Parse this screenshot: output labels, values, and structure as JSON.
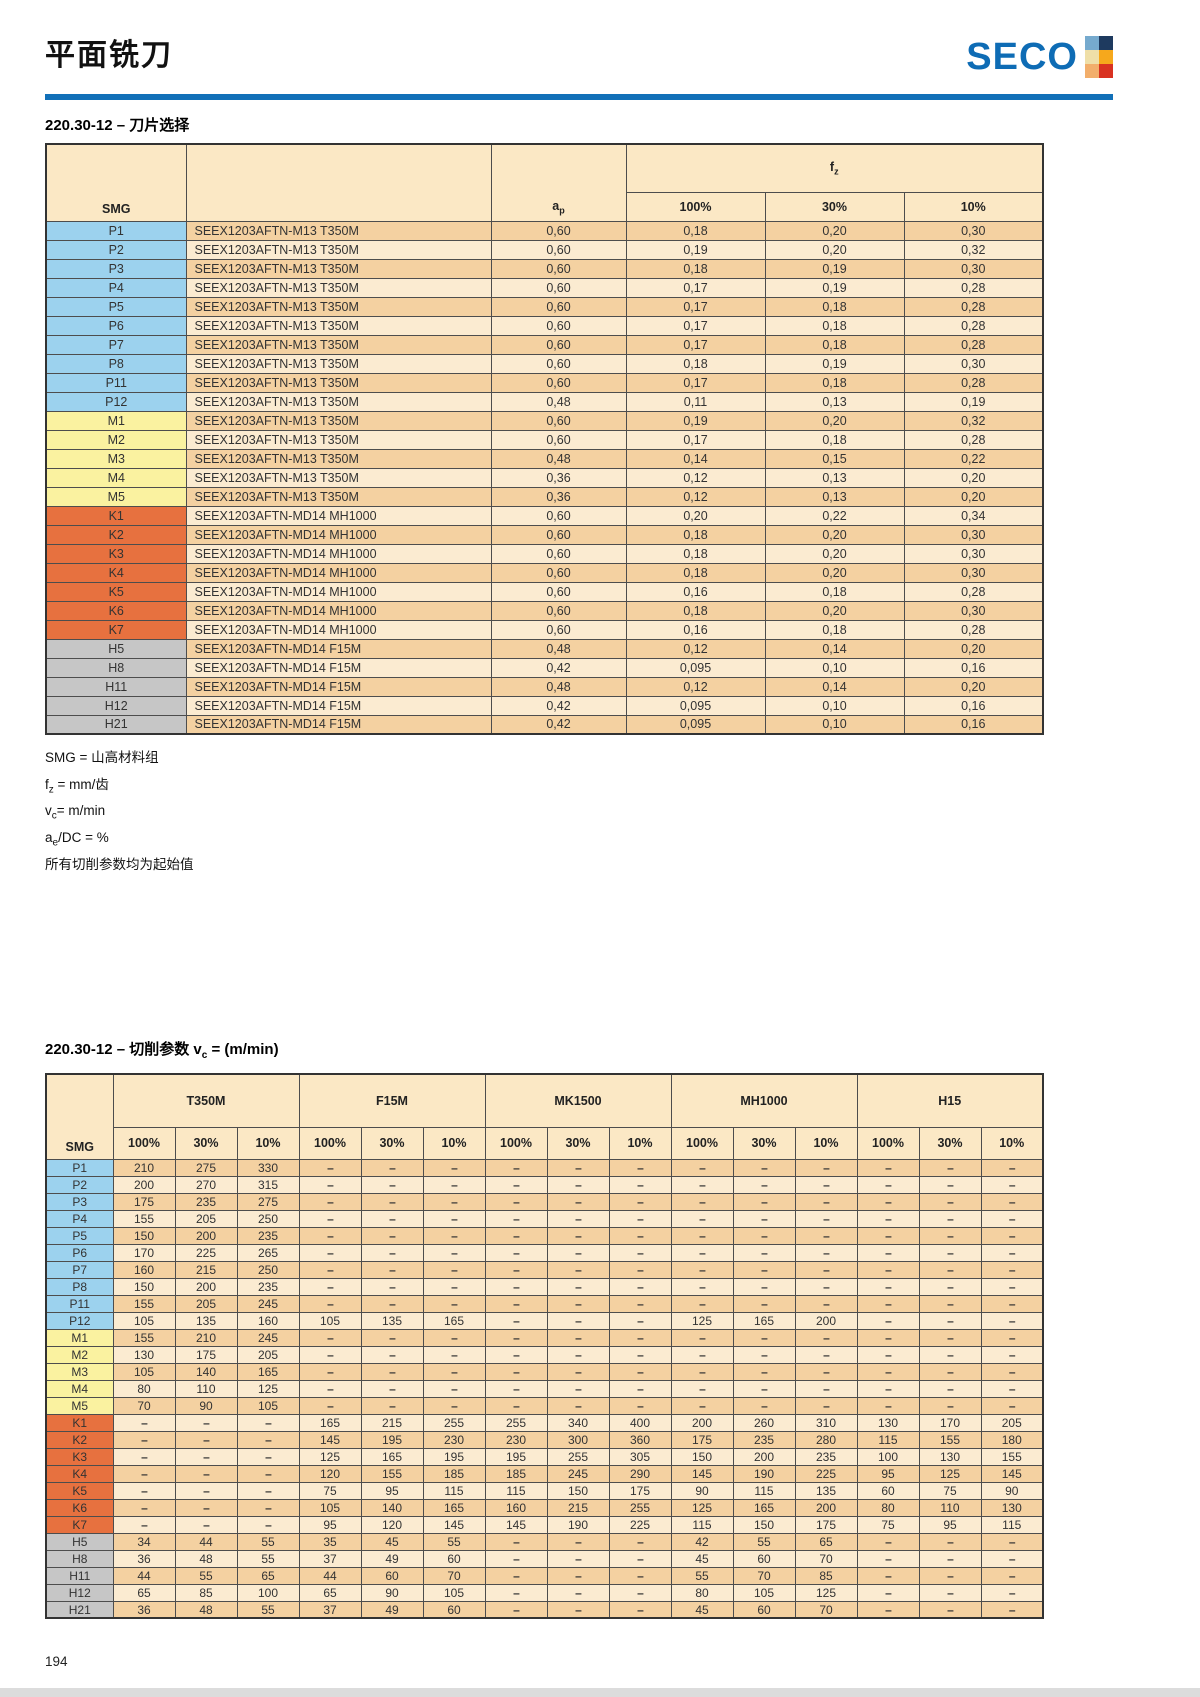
{
  "page": {
    "title": "平面铣刀",
    "page_number": "194"
  },
  "logo": {
    "text": "SECO",
    "squares": [
      "#76AACE",
      "#1E3A5F",
      "#EFDFA8",
      "#F6A81C",
      "#F2AE6B",
      "#D93221"
    ]
  },
  "colors": {
    "accent_blue": "#1170B8",
    "logo_blue": "#0E6CB5",
    "header_fill": "#FBE8C5",
    "row_dark": "#F4D1A1",
    "row_light": "#FBEBD1",
    "border": "#4D4D4D",
    "groups": {
      "P": "#9CD2EE",
      "M": "#FAF2A0",
      "K": "#E7713F",
      "H": "#C6C6C6"
    }
  },
  "table1": {
    "title": "220.30-12 – 刀片选择",
    "header": {
      "smg": "SMG",
      "ap_pre": "a",
      "ap_sub": "p",
      "fz_pre": "f",
      "fz_sub": "z",
      "percents": [
        "100%",
        "30%",
        "10%"
      ]
    },
    "rows": [
      {
        "smg": "P1",
        "group": "P",
        "insert": "SEEX1203AFTN-M13 T350M",
        "ap": "0,60",
        "fz": [
          "0,18",
          "0,20",
          "0,30"
        ]
      },
      {
        "smg": "P2",
        "group": "P",
        "insert": "SEEX1203AFTN-M13 T350M",
        "ap": "0,60",
        "fz": [
          "0,19",
          "0,20",
          "0,32"
        ]
      },
      {
        "smg": "P3",
        "group": "P",
        "insert": "SEEX1203AFTN-M13 T350M",
        "ap": "0,60",
        "fz": [
          "0,18",
          "0,19",
          "0,30"
        ]
      },
      {
        "smg": "P4",
        "group": "P",
        "insert": "SEEX1203AFTN-M13 T350M",
        "ap": "0,60",
        "fz": [
          "0,17",
          "0,19",
          "0,28"
        ]
      },
      {
        "smg": "P5",
        "group": "P",
        "insert": "SEEX1203AFTN-M13 T350M",
        "ap": "0,60",
        "fz": [
          "0,17",
          "0,18",
          "0,28"
        ]
      },
      {
        "smg": "P6",
        "group": "P",
        "insert": "SEEX1203AFTN-M13 T350M",
        "ap": "0,60",
        "fz": [
          "0,17",
          "0,18",
          "0,28"
        ]
      },
      {
        "smg": "P7",
        "group": "P",
        "insert": "SEEX1203AFTN-M13 T350M",
        "ap": "0,60",
        "fz": [
          "0,17",
          "0,18",
          "0,28"
        ]
      },
      {
        "smg": "P8",
        "group": "P",
        "insert": "SEEX1203AFTN-M13 T350M",
        "ap": "0,60",
        "fz": [
          "0,18",
          "0,19",
          "0,30"
        ]
      },
      {
        "smg": "P11",
        "group": "P",
        "insert": "SEEX1203AFTN-M13 T350M",
        "ap": "0,60",
        "fz": [
          "0,17",
          "0,18",
          "0,28"
        ]
      },
      {
        "smg": "P12",
        "group": "P",
        "insert": "SEEX1203AFTN-M13 T350M",
        "ap": "0,48",
        "fz": [
          "0,11",
          "0,13",
          "0,19"
        ]
      },
      {
        "smg": "M1",
        "group": "M",
        "insert": "SEEX1203AFTN-M13 T350M",
        "ap": "0,60",
        "fz": [
          "0,19",
          "0,20",
          "0,32"
        ]
      },
      {
        "smg": "M2",
        "group": "M",
        "insert": "SEEX1203AFTN-M13 T350M",
        "ap": "0,60",
        "fz": [
          "0,17",
          "0,18",
          "0,28"
        ]
      },
      {
        "smg": "M3",
        "group": "M",
        "insert": "SEEX1203AFTN-M13 T350M",
        "ap": "0,48",
        "fz": [
          "0,14",
          "0,15",
          "0,22"
        ]
      },
      {
        "smg": "M4",
        "group": "M",
        "insert": "SEEX1203AFTN-M13 T350M",
        "ap": "0,36",
        "fz": [
          "0,12",
          "0,13",
          "0,20"
        ]
      },
      {
        "smg": "M5",
        "group": "M",
        "insert": "SEEX1203AFTN-M13 T350M",
        "ap": "0,36",
        "fz": [
          "0,12",
          "0,13",
          "0,20"
        ]
      },
      {
        "smg": "K1",
        "group": "K",
        "insert": "SEEX1203AFTN-MD14 MH1000",
        "ap": "0,60",
        "fz": [
          "0,20",
          "0,22",
          "0,34"
        ]
      },
      {
        "smg": "K2",
        "group": "K",
        "insert": "SEEX1203AFTN-MD14 MH1000",
        "ap": "0,60",
        "fz": [
          "0,18",
          "0,20",
          "0,30"
        ]
      },
      {
        "smg": "K3",
        "group": "K",
        "insert": "SEEX1203AFTN-MD14 MH1000",
        "ap": "0,60",
        "fz": [
          "0,18",
          "0,20",
          "0,30"
        ]
      },
      {
        "smg": "K4",
        "group": "K",
        "insert": "SEEX1203AFTN-MD14 MH1000",
        "ap": "0,60",
        "fz": [
          "0,18",
          "0,20",
          "0,30"
        ]
      },
      {
        "smg": "K5",
        "group": "K",
        "insert": "SEEX1203AFTN-MD14 MH1000",
        "ap": "0,60",
        "fz": [
          "0,16",
          "0,18",
          "0,28"
        ]
      },
      {
        "smg": "K6",
        "group": "K",
        "insert": "SEEX1203AFTN-MD14 MH1000",
        "ap": "0,60",
        "fz": [
          "0,18",
          "0,20",
          "0,30"
        ]
      },
      {
        "smg": "K7",
        "group": "K",
        "insert": "SEEX1203AFTN-MD14 MH1000",
        "ap": "0,60",
        "fz": [
          "0,16",
          "0,18",
          "0,28"
        ]
      },
      {
        "smg": "H5",
        "group": "H",
        "insert": "SEEX1203AFTN-MD14 F15M",
        "ap": "0,48",
        "fz": [
          "0,12",
          "0,14",
          "0,20"
        ]
      },
      {
        "smg": "H8",
        "group": "H",
        "insert": "SEEX1203AFTN-MD14 F15M",
        "ap": "0,42",
        "fz": [
          "0,095",
          "0,10",
          "0,16"
        ]
      },
      {
        "smg": "H11",
        "group": "H",
        "insert": "SEEX1203AFTN-MD14 F15M",
        "ap": "0,48",
        "fz": [
          "0,12",
          "0,14",
          "0,20"
        ]
      },
      {
        "smg": "H12",
        "group": "H",
        "insert": "SEEX1203AFTN-MD14 F15M",
        "ap": "0,42",
        "fz": [
          "0,095",
          "0,10",
          "0,16"
        ]
      },
      {
        "smg": "H21",
        "group": "H",
        "insert": "SEEX1203AFTN-MD14 F15M",
        "ap": "0,42",
        "fz": [
          "0,095",
          "0,10",
          "0,16"
        ]
      }
    ]
  },
  "notes": [
    {
      "pre": "SMG",
      "sub": "",
      "post": " = 山高材料组"
    },
    {
      "pre": "f",
      "sub": "z",
      "post": " = mm/齿"
    },
    {
      "pre": "v",
      "sub": "c",
      "post": "= m/min"
    },
    {
      "pre": "a",
      "sub": "e",
      "post": "/DC = %"
    },
    {
      "pre": "所有切削参数均为起始值",
      "sub": "",
      "post": ""
    }
  ],
  "table2": {
    "title_pre": "220.30-12 – 切削参数 v",
    "title_sub": "c",
    "title_post": " = (m/min)",
    "header_smg": "SMG",
    "grades": [
      "T350M",
      "F15M",
      "MK1500",
      "MH1000",
      "H15"
    ],
    "percents": [
      "100%",
      "30%",
      "10%"
    ],
    "rows": [
      {
        "smg": "P1",
        "group": "P",
        "values": [
          "210",
          "275",
          "330",
          "–",
          "–",
          "–",
          "–",
          "–",
          "–",
          "–",
          "–",
          "–",
          "–",
          "–",
          "–"
        ]
      },
      {
        "smg": "P2",
        "group": "P",
        "values": [
          "200",
          "270",
          "315",
          "–",
          "–",
          "–",
          "–",
          "–",
          "–",
          "–",
          "–",
          "–",
          "–",
          "–",
          "–"
        ]
      },
      {
        "smg": "P3",
        "group": "P",
        "values": [
          "175",
          "235",
          "275",
          "–",
          "–",
          "–",
          "–",
          "–",
          "–",
          "–",
          "–",
          "–",
          "–",
          "–",
          "–"
        ]
      },
      {
        "smg": "P4",
        "group": "P",
        "values": [
          "155",
          "205",
          "250",
          "–",
          "–",
          "–",
          "–",
          "–",
          "–",
          "–",
          "–",
          "–",
          "–",
          "–",
          "–"
        ]
      },
      {
        "smg": "P5",
        "group": "P",
        "values": [
          "150",
          "200",
          "235",
          "–",
          "–",
          "–",
          "–",
          "–",
          "–",
          "–",
          "–",
          "–",
          "–",
          "–",
          "–"
        ]
      },
      {
        "smg": "P6",
        "group": "P",
        "values": [
          "170",
          "225",
          "265",
          "–",
          "–",
          "–",
          "–",
          "–",
          "–",
          "–",
          "–",
          "–",
          "–",
          "–",
          "–"
        ]
      },
      {
        "smg": "P7",
        "group": "P",
        "values": [
          "160",
          "215",
          "250",
          "–",
          "–",
          "–",
          "–",
          "–",
          "–",
          "–",
          "–",
          "–",
          "–",
          "–",
          "–"
        ]
      },
      {
        "smg": "P8",
        "group": "P",
        "values": [
          "150",
          "200",
          "235",
          "–",
          "–",
          "–",
          "–",
          "–",
          "–",
          "–",
          "–",
          "–",
          "–",
          "–",
          "–"
        ]
      },
      {
        "smg": "P11",
        "group": "P",
        "values": [
          "155",
          "205",
          "245",
          "–",
          "–",
          "–",
          "–",
          "–",
          "–",
          "–",
          "–",
          "–",
          "–",
          "–",
          "–"
        ]
      },
      {
        "smg": "P12",
        "group": "P",
        "values": [
          "105",
          "135",
          "160",
          "105",
          "135",
          "165",
          "–",
          "–",
          "–",
          "125",
          "165",
          "200",
          "–",
          "–",
          "–"
        ]
      },
      {
        "smg": "M1",
        "group": "M",
        "values": [
          "155",
          "210",
          "245",
          "–",
          "–",
          "–",
          "–",
          "–",
          "–",
          "–",
          "–",
          "–",
          "–",
          "–",
          "–"
        ]
      },
      {
        "smg": "M2",
        "group": "M",
        "values": [
          "130",
          "175",
          "205",
          "–",
          "–",
          "–",
          "–",
          "–",
          "–",
          "–",
          "–",
          "–",
          "–",
          "–",
          "–"
        ]
      },
      {
        "smg": "M3",
        "group": "M",
        "values": [
          "105",
          "140",
          "165",
          "–",
          "–",
          "–",
          "–",
          "–",
          "–",
          "–",
          "–",
          "–",
          "–",
          "–",
          "–"
        ]
      },
      {
        "smg": "M4",
        "group": "M",
        "values": [
          "80",
          "110",
          "125",
          "–",
          "–",
          "–",
          "–",
          "–",
          "–",
          "–",
          "–",
          "–",
          "–",
          "–",
          "–"
        ]
      },
      {
        "smg": "M5",
        "group": "M",
        "values": [
          "70",
          "90",
          "105",
          "–",
          "–",
          "–",
          "–",
          "–",
          "–",
          "–",
          "–",
          "–",
          "–",
          "–",
          "–"
        ]
      },
      {
        "smg": "K1",
        "group": "K",
        "values": [
          "–",
          "–",
          "–",
          "165",
          "215",
          "255",
          "255",
          "340",
          "400",
          "200",
          "260",
          "310",
          "130",
          "170",
          "205"
        ]
      },
      {
        "smg": "K2",
        "group": "K",
        "values": [
          "–",
          "–",
          "–",
          "145",
          "195",
          "230",
          "230",
          "300",
          "360",
          "175",
          "235",
          "280",
          "115",
          "155",
          "180"
        ]
      },
      {
        "smg": "K3",
        "group": "K",
        "values": [
          "–",
          "–",
          "–",
          "125",
          "165",
          "195",
          "195",
          "255",
          "305",
          "150",
          "200",
          "235",
          "100",
          "130",
          "155"
        ]
      },
      {
        "smg": "K4",
        "group": "K",
        "values": [
          "–",
          "–",
          "–",
          "120",
          "155",
          "185",
          "185",
          "245",
          "290",
          "145",
          "190",
          "225",
          "95",
          "125",
          "145"
        ]
      },
      {
        "smg": "K5",
        "group": "K",
        "values": [
          "–",
          "–",
          "–",
          "75",
          "95",
          "115",
          "115",
          "150",
          "175",
          "90",
          "115",
          "135",
          "60",
          "75",
          "90"
        ]
      },
      {
        "smg": "K6",
        "group": "K",
        "values": [
          "–",
          "–",
          "–",
          "105",
          "140",
          "165",
          "160",
          "215",
          "255",
          "125",
          "165",
          "200",
          "80",
          "110",
          "130"
        ]
      },
      {
        "smg": "K7",
        "group": "K",
        "values": [
          "–",
          "–",
          "–",
          "95",
          "120",
          "145",
          "145",
          "190",
          "225",
          "115",
          "150",
          "175",
          "75",
          "95",
          "115"
        ]
      },
      {
        "smg": "H5",
        "group": "H",
        "values": [
          "34",
          "44",
          "55",
          "35",
          "45",
          "55",
          "–",
          "–",
          "–",
          "42",
          "55",
          "65",
          "–",
          "–",
          "–"
        ]
      },
      {
        "smg": "H8",
        "group": "H",
        "values": [
          "36",
          "48",
          "55",
          "37",
          "49",
          "60",
          "–",
          "–",
          "–",
          "45",
          "60",
          "70",
          "–",
          "–",
          "–"
        ]
      },
      {
        "smg": "H11",
        "group": "H",
        "values": [
          "44",
          "55",
          "65",
          "44",
          "60",
          "70",
          "–",
          "–",
          "–",
          "55",
          "70",
          "85",
          "–",
          "–",
          "–"
        ]
      },
      {
        "smg": "H12",
        "group": "H",
        "values": [
          "65",
          "85",
          "100",
          "65",
          "90",
          "105",
          "–",
          "–",
          "–",
          "80",
          "105",
          "125",
          "–",
          "–",
          "–"
        ]
      },
      {
        "smg": "H21",
        "group": "H",
        "values": [
          "36",
          "48",
          "55",
          "37",
          "49",
          "60",
          "–",
          "–",
          "–",
          "45",
          "60",
          "70",
          "–",
          "–",
          "–"
        ]
      }
    ]
  }
}
